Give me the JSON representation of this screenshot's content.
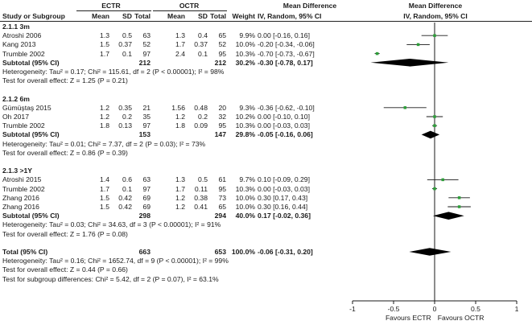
{
  "header": {
    "group1": "ECTR",
    "group2": "OCTR",
    "effect_title": "Mean Difference",
    "plot_title": "Mean Difference",
    "columns": [
      "Study or Subgroup",
      "Mean",
      "SD",
      "Total",
      "Mean",
      "SD",
      "Total",
      "Weight",
      "IV, Random, 95% CI"
    ],
    "plot_subtitle": "IV, Random, 95% CI"
  },
  "colors": {
    "box": "#2e9e3a",
    "line": "#1a1a1a",
    "diamond": "#000000"
  },
  "rows": [
    {
      "kind": "group",
      "study": "2.1.1 3m"
    },
    {
      "kind": "study",
      "study": "Atroshi 2006",
      "m1": "1.3",
      "sd1": "0.5",
      "n1": "63",
      "m2": "1.3",
      "sd2": "0.4",
      "n2": "65",
      "weight": "9.9%",
      "ci": "0.00 [-0.16, 0.16]"
    },
    {
      "kind": "study",
      "study": "Kang 2013",
      "m1": "1.5",
      "sd1": "0.37",
      "n1": "52",
      "m2": "1.7",
      "sd2": "0.37",
      "n2": "52",
      "weight": "10.0%",
      "ci": "-0.20 [-0.34, -0.06]"
    },
    {
      "kind": "study",
      "study": "Trumble 2002",
      "m1": "1.7",
      "sd1": "0.1",
      "n1": "97",
      "m2": "2.4",
      "sd2": "0.1",
      "n2": "95",
      "weight": "10.3%",
      "ci": "-0.70 [-0.73, -0.67]"
    },
    {
      "kind": "subtotal",
      "study": "Subtotal (95% CI)",
      "n1": "212",
      "n2": "212",
      "weight": "30.2%",
      "ci": "-0.30 [-0.78, 0.17]"
    },
    {
      "kind": "note",
      "study": "Heterogeneity: Tau² = 0.17; Chi² = 115.61, df = 2 (P < 0.00001); I² = 98%"
    },
    {
      "kind": "note",
      "study": "Test for overall effect: Z = 1.25 (P = 0.21)"
    },
    {
      "kind": "blank"
    },
    {
      "kind": "group",
      "study": "2.1.2 6m"
    },
    {
      "kind": "study",
      "study": "Gümüştaş 2015",
      "m1": "1.2",
      "sd1": "0.35",
      "n1": "21",
      "m2": "1.56",
      "sd2": "0.48",
      "n2": "20",
      "weight": "9.3%",
      "ci": "-0.36 [-0.62, -0.10]"
    },
    {
      "kind": "study",
      "study": "Oh 2017",
      "m1": "1.2",
      "sd1": "0.2",
      "n1": "35",
      "m2": "1.2",
      "sd2": "0.2",
      "n2": "32",
      "weight": "10.2%",
      "ci": "0.00 [-0.10, 0.10]"
    },
    {
      "kind": "study",
      "study": "Trumble 2002",
      "m1": "1.8",
      "sd1": "0.13",
      "n1": "97",
      "m2": "1.8",
      "sd2": "0.09",
      "n2": "95",
      "weight": "10.3%",
      "ci": "0.00 [-0.03, 0.03]"
    },
    {
      "kind": "subtotal",
      "study": "Subtotal (95% CI)",
      "n1": "153",
      "n2": "147",
      "weight": "29.8%",
      "ci": "-0.05 [-0.16, 0.06]"
    },
    {
      "kind": "note",
      "study": "Heterogeneity: Tau² = 0.01; Chi² = 7.37, df = 2 (P = 0.03); I² = 73%"
    },
    {
      "kind": "note",
      "study": "Test for overall effect: Z = 0.86 (P = 0.39)"
    },
    {
      "kind": "blank"
    },
    {
      "kind": "group",
      "study": "2.1.3 >1Y"
    },
    {
      "kind": "study",
      "study": "Atroshi 2015",
      "m1": "1.4",
      "sd1": "0.6",
      "n1": "63",
      "m2": "1.3",
      "sd2": "0.5",
      "n2": "61",
      "weight": "9.7%",
      "ci": "0.10 [-0.09, 0.29]"
    },
    {
      "kind": "study",
      "study": "Trumble 2002",
      "m1": "1.7",
      "sd1": "0.1",
      "n1": "97",
      "m2": "1.7",
      "sd2": "0.11",
      "n2": "95",
      "weight": "10.3%",
      "ci": "0.00 [-0.03, 0.03]"
    },
    {
      "kind": "study",
      "study": "Zhang 2016",
      "m1": "1.5",
      "sd1": "0.42",
      "n1": "69",
      "m2": "1.2",
      "sd2": "0.38",
      "n2": "73",
      "weight": "10.0%",
      "ci": "0.30 [0.17, 0.43]"
    },
    {
      "kind": "study",
      "study": "Zhang 2016",
      "m1": "1.5",
      "sd1": "0.42",
      "n1": "69",
      "m2": "1.2",
      "sd2": "0.41",
      "n2": "65",
      "weight": "10.0%",
      "ci": "0.30 [0.16, 0.44]"
    },
    {
      "kind": "subtotal",
      "study": "Subtotal (95% CI)",
      "n1": "298",
      "n2": "294",
      "weight": "40.0%",
      "ci": "0.17 [-0.02, 0.36]"
    },
    {
      "kind": "note",
      "study": "Heterogeneity: Tau² = 0.03; Chi² = 34.63, df = 3 (P < 0.00001); I² = 91%"
    },
    {
      "kind": "note",
      "study": "Test for overall effect: Z = 1.76 (P = 0.08)"
    },
    {
      "kind": "blank"
    },
    {
      "kind": "total",
      "study": "Total (95% CI)",
      "n1": "663",
      "n2": "653",
      "weight": "100.0%",
      "ci": "-0.06 [-0.31, 0.20]"
    },
    {
      "kind": "note",
      "study": "Heterogeneity: Tau² = 0.16; Chi² = 1652.74, df = 9 (P < 0.00001); I² = 99%"
    },
    {
      "kind": "note",
      "study": "Test for overall effect: Z = 0.44 (P = 0.66)"
    },
    {
      "kind": "note",
      "study": "Test for subgroup differences: Chi² = 5.42, df = 2 (P = 0.07), I² = 63.1%"
    }
  ],
  "chart_data": {
    "type": "scatter",
    "title": "Mean Difference",
    "subtitle": "IV, Random, 95% CI",
    "xlim": [
      -1,
      1
    ],
    "ticks": [
      -1,
      -0.5,
      0,
      0.5,
      1
    ],
    "tick_labels": [
      "-1",
      "-0.5",
      "0",
      "0.5",
      "1"
    ],
    "xlabel_left": "Favours ECTR",
    "xlabel_right": "Favours OCTR",
    "studies": [
      {
        "name": "Atroshi 2006",
        "md": 0.0,
        "lo": -0.16,
        "hi": 0.16,
        "weight": 9.9
      },
      {
        "name": "Kang 2013",
        "md": -0.2,
        "lo": -0.34,
        "hi": -0.06,
        "weight": 10.0
      },
      {
        "name": "Trumble 2002",
        "md": -0.7,
        "lo": -0.73,
        "hi": -0.67,
        "weight": 10.3
      },
      {
        "name": "Gümüştaş 2015",
        "md": -0.36,
        "lo": -0.62,
        "hi": -0.1,
        "weight": 9.3
      },
      {
        "name": "Oh 2017",
        "md": 0.0,
        "lo": -0.1,
        "hi": 0.1,
        "weight": 10.2
      },
      {
        "name": "Trumble 2002",
        "md": 0.0,
        "lo": -0.03,
        "hi": 0.03,
        "weight": 10.3
      },
      {
        "name": "Atroshi 2015",
        "md": 0.1,
        "lo": -0.09,
        "hi": 0.29,
        "weight": 9.7
      },
      {
        "name": "Trumble 2002",
        "md": 0.0,
        "lo": -0.03,
        "hi": 0.03,
        "weight": 10.3
      },
      {
        "name": "Zhang 2016",
        "md": 0.3,
        "lo": 0.17,
        "hi": 0.43,
        "weight": 10.0
      },
      {
        "name": "Zhang 2016",
        "md": 0.3,
        "lo": 0.16,
        "hi": 0.44,
        "weight": 10.0
      }
    ],
    "pooled": [
      {
        "name": "Subtotal (95% CI)",
        "md": -0.3,
        "lo": -0.78,
        "hi": 0.17
      },
      {
        "name": "Subtotal (95% CI)",
        "md": -0.05,
        "lo": -0.16,
        "hi": 0.06
      },
      {
        "name": "Subtotal (95% CI)",
        "md": 0.17,
        "lo": -0.02,
        "hi": 0.36
      },
      {
        "name": "Total (95% CI)",
        "md": -0.06,
        "lo": -0.31,
        "hi": 0.2
      }
    ]
  }
}
